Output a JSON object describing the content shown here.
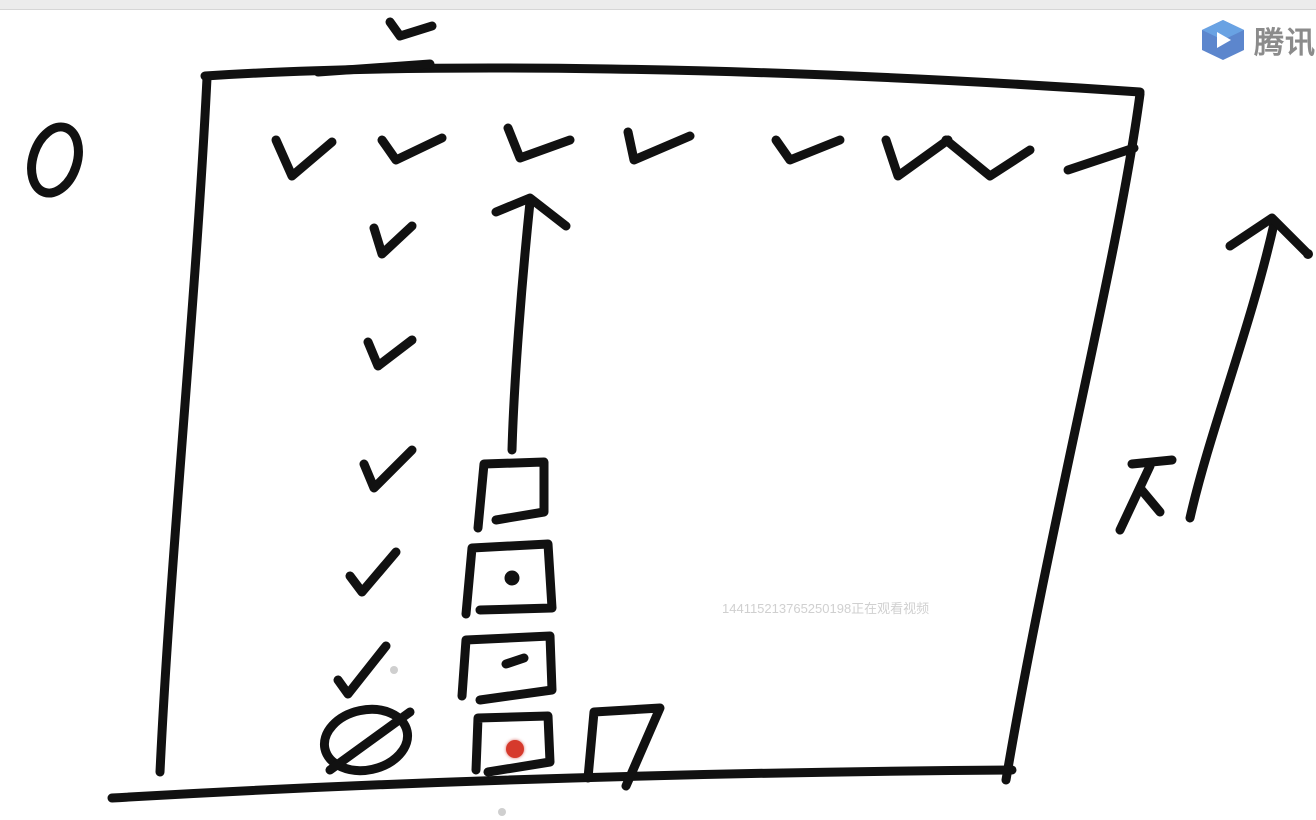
{
  "window": {
    "title_bar_color": "#ececec"
  },
  "logo": {
    "icon": "tencent-classroom-play-icon",
    "text": "腾讯",
    "icon_color": "#4a79c8"
  },
  "watermark": {
    "text": "144115213765250198正在观看视频"
  },
  "whiteboard": {
    "ink_color": "#111111",
    "background": "#ffffff",
    "cursor_color": "#d63a2c"
  }
}
